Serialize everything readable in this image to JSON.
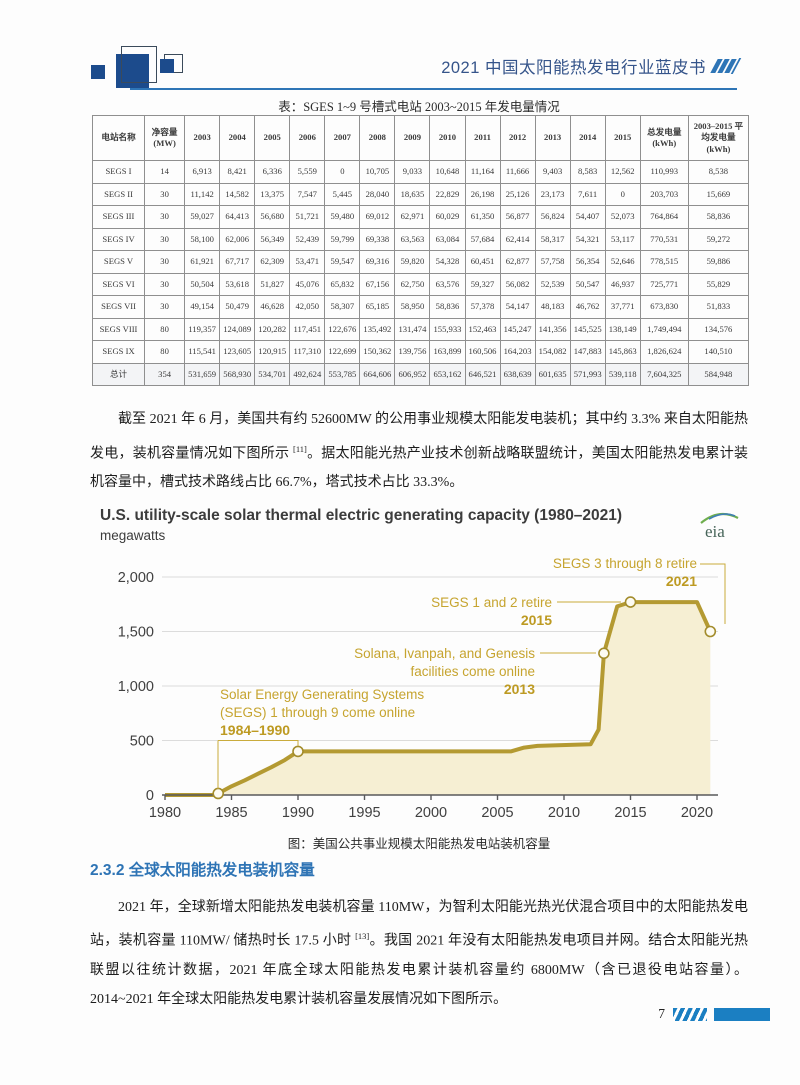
{
  "header": {
    "title": "2021 中国太阳能热发电行业蓝皮书"
  },
  "table": {
    "title": "表：SGES 1~9 号槽式电站 2003~2015 年发电量情况",
    "headers": [
      "电站名称",
      "净容量 (MW)",
      "2003",
      "2004",
      "2005",
      "2006",
      "2007",
      "2008",
      "2009",
      "2010",
      "2011",
      "2012",
      "2013",
      "2014",
      "2015",
      "总发电量 (kWh)",
      "2003–2015 平均发电量 (kWh)"
    ],
    "rows": [
      [
        "SEGS I",
        "14",
        "6,913",
        "8,421",
        "6,336",
        "5,559",
        "0",
        "10,705",
        "9,033",
        "10,648",
        "11,164",
        "11,666",
        "9,403",
        "8,583",
        "12,562",
        "110,993",
        "8,538"
      ],
      [
        "SEGS II",
        "30",
        "11,142",
        "14,582",
        "13,375",
        "7,547",
        "5,445",
        "28,040",
        "18,635",
        "22,829",
        "26,198",
        "25,126",
        "23,173",
        "7,611",
        "0",
        "203,703",
        "15,669"
      ],
      [
        "SEGS III",
        "30",
        "59,027",
        "64,413",
        "56,680",
        "51,721",
        "59,480",
        "69,012",
        "62,971",
        "60,029",
        "61,350",
        "56,877",
        "56,824",
        "54,407",
        "52,073",
        "764,864",
        "58,836"
      ],
      [
        "SEGS IV",
        "30",
        "58,100",
        "62,006",
        "56,349",
        "52,439",
        "59,799",
        "69,338",
        "63,563",
        "63,084",
        "57,684",
        "62,414",
        "58,317",
        "54,321",
        "53,117",
        "770,531",
        "59,272"
      ],
      [
        "SEGS V",
        "30",
        "61,921",
        "67,717",
        "62,309",
        "53,471",
        "59,547",
        "69,316",
        "59,820",
        "54,328",
        "60,451",
        "62,877",
        "57,758",
        "56,354",
        "52,646",
        "778,515",
        "59,886"
      ],
      [
        "SEGS VI",
        "30",
        "50,504",
        "53,618",
        "51,827",
        "45,076",
        "65,832",
        "67,156",
        "62,750",
        "63,576",
        "59,327",
        "56,082",
        "52,539",
        "50,547",
        "46,937",
        "725,771",
        "55,829"
      ],
      [
        "SEGS VII",
        "30",
        "49,154",
        "50,479",
        "46,628",
        "42,050",
        "58,307",
        "65,185",
        "58,950",
        "58,836",
        "57,378",
        "54,147",
        "48,183",
        "46,762",
        "37,771",
        "673,830",
        "51,833"
      ],
      [
        "SEGS VIII",
        "80",
        "119,357",
        "124,089",
        "120,282",
        "117,451",
        "122,676",
        "135,492",
        "131,474",
        "155,933",
        "152,463",
        "145,247",
        "141,356",
        "145,525",
        "138,149",
        "1,749,494",
        "134,576"
      ],
      [
        "SEGS IX",
        "80",
        "115,541",
        "123,605",
        "120,915",
        "117,310",
        "122,699",
        "150,362",
        "139,756",
        "163,899",
        "160,506",
        "164,203",
        "154,082",
        "147,883",
        "145,863",
        "1,826,624",
        "140,510"
      ],
      [
        "总计",
        "354",
        "531,659",
        "568,930",
        "534,701",
        "492,624",
        "553,785",
        "664,606",
        "606,952",
        "653,162",
        "646,521",
        "638,639",
        "601,635",
        "571,993",
        "539,118",
        "7,604,325",
        "584,948"
      ]
    ],
    "total_label": "总计"
  },
  "paragraphs": {
    "p1_a": "截至 2021 年 6 月，美国共有约 52600MW 的公用事业规模太阳能发电装机；其中约 3.3% 来自太阳能热发电，装机容量情况如下图所示 ",
    "p1_sup": "[11]",
    "p1_b": "。据太阳能光热产业技术创新战略联盟统计，美国太阳能热发电累计装机容量中，槽式技术路线占比 66.7%，塔式技术占比 33.3%。",
    "p2_a": "2021 年，全球新增太阳能热发电装机容量 110MW，为智利太阳能光热光伏混合项目中的太阳能热发电站，装机容量 110MW/ 储热时长 17.5 小时 ",
    "p2_sup": "[13]",
    "p2_b": "。我国 2021 年没有太阳能热发电项目并网。结合太阳能光热联盟以往统计数据，2021 年底全球太阳能热发电累计装机容量约 6800MW（含已退役电站容量）。2014~2021 年全球太阳能热发电累计装机容量发展情况如下图所示。"
  },
  "chart_caption": "图：美国公共事业规模太阳能热发电站装机容量",
  "section": {
    "heading": "2.3.2 全球太阳能热发电装机容量"
  },
  "footer": {
    "page_number": "7"
  },
  "chart_data": {
    "type": "area",
    "title": "U.S. utility-scale solar thermal electric generating capacity (1980–2021)",
    "units_label": "megawatts",
    "logo": "eia-logo",
    "xlim": [
      1980,
      2021.6
    ],
    "ylim": [
      0,
      2000
    ],
    "xticks": [
      1980,
      1985,
      1990,
      1995,
      2000,
      2005,
      2010,
      2015,
      2020
    ],
    "yticks": [
      0,
      500,
      1000,
      1500,
      2000
    ],
    "ytick_labels": [
      "0",
      "500",
      "1,000",
      "1,500",
      "2,000"
    ],
    "x": [
      1980,
      1983.7,
      1984,
      1985,
      1986,
      1987,
      1988,
      1989,
      1990,
      2006,
      2007,
      2008,
      2012,
      2012.6,
      2013,
      2014,
      2015,
      2020,
      2021
    ],
    "y": [
      0,
      0,
      14,
      80,
      135,
      195,
      255,
      320,
      400,
      400,
      435,
      450,
      465,
      600,
      1300,
      1730,
      1770,
      1770,
      1500
    ],
    "markers": [
      [
        1984,
        14
      ],
      [
        1990,
        400
      ],
      [
        2013,
        1300
      ],
      [
        2015,
        1770
      ],
      [
        2021,
        1500
      ]
    ],
    "line_color": "#b49a32",
    "fill_color": "#f6efd3",
    "annotation_color": "#c6a42f",
    "annotations": [
      {
        "line1": "Solar Energy Generating Systems",
        "line2": "(SEGS) 1 through 9 come online",
        "year": "1984–1990"
      },
      {
        "line1": "Solana, Ivanpah, and Genesis",
        "line2": "facilities come online",
        "year": "2013"
      },
      {
        "line1": "SEGS 1 and 2 retire",
        "line2": "",
        "year": "2015"
      },
      {
        "line1": "SEGS 3 through 8 retire",
        "line2": "",
        "year": "2021"
      }
    ]
  }
}
